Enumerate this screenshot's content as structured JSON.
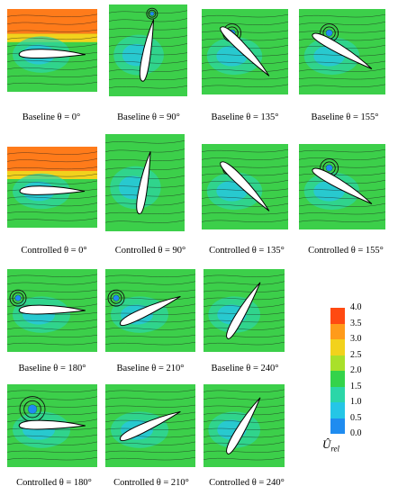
{
  "panels": [
    {
      "id": "p1",
      "caption": "Baseline θ = 0°",
      "angle": 0,
      "vortex": "none"
    },
    {
      "id": "p2",
      "caption": "Baseline θ = 90°",
      "angle": 90,
      "vortex": "tip"
    },
    {
      "id": "p3",
      "caption": "Baseline θ = 135°",
      "angle": 135,
      "vortex": "multi"
    },
    {
      "id": "p4",
      "caption": "Baseline θ = 155°",
      "angle": 155,
      "vortex": "multi"
    },
    {
      "id": "p5",
      "caption": "Controlled θ = 0°",
      "angle": 0,
      "vortex": "none"
    },
    {
      "id": "p6",
      "caption": "Controlled θ = 90°",
      "angle": 90,
      "vortex": "none"
    },
    {
      "id": "p7",
      "caption": "Controlled θ = 135°",
      "angle": 135,
      "vortex": "small"
    },
    {
      "id": "p8",
      "caption": "Controlled θ = 155°",
      "angle": 155,
      "vortex": "multi"
    },
    {
      "id": "p9",
      "caption": "Baseline θ = 180°",
      "angle": 180,
      "vortex": "left"
    },
    {
      "id": "p10",
      "caption": "Baseline θ = 210°",
      "angle": 210,
      "vortex": "left"
    },
    {
      "id": "p11",
      "caption": "Baseline θ = 240°",
      "angle": 240,
      "vortex": "none"
    },
    {
      "id": "p12",
      "caption": "Controlled θ = 180°",
      "angle": 180,
      "vortex": "big"
    },
    {
      "id": "p13",
      "caption": "Controlled θ = 210°",
      "angle": 210,
      "vortex": "none"
    },
    {
      "id": "p14",
      "caption": "Controlled θ = 240°",
      "angle": 240,
      "vortex": "none"
    }
  ],
  "colorbar": {
    "ticks": [
      "4.0",
      "3.5",
      "3.0",
      "2.5",
      "2.0",
      "1.5",
      "1.0",
      "0.5",
      "0.0"
    ],
    "colors": [
      "#ff4a12",
      "#ff9b1a",
      "#f2d21c",
      "#a9e02a",
      "#34d34a",
      "#2bd6a8",
      "#25c6e6",
      "#1f8cf0",
      "#1440e0"
    ],
    "symbol": "Û",
    "symbol_sub": "rel"
  }
}
